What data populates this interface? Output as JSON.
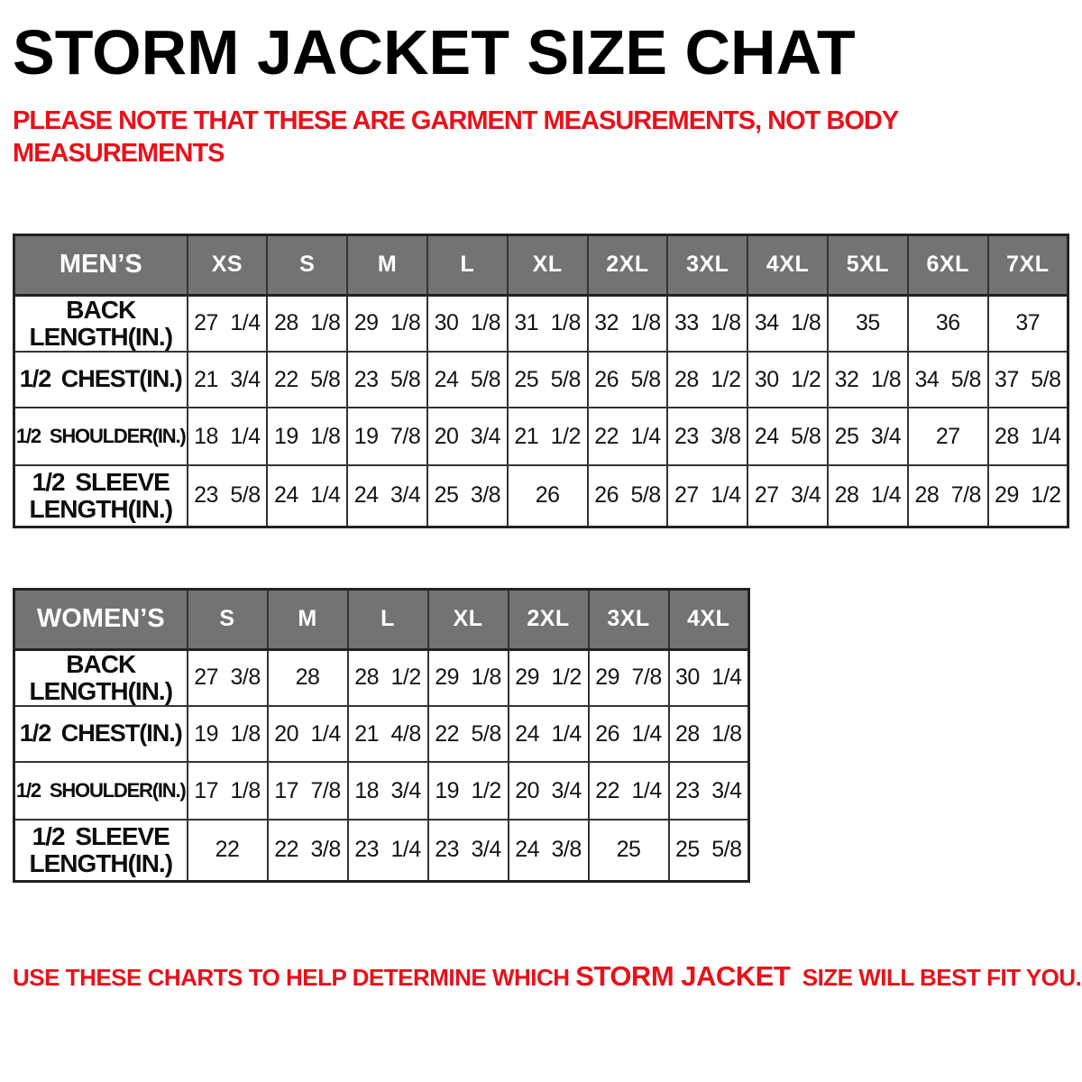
{
  "title": "STORM JACKET SIZE CHAT",
  "note": "PLEASE NOTE THAT THESE ARE GARMENT MEASUREMENTS, NOT BODY MEASUREMENTS",
  "tables": [
    {
      "name": "MEN’S",
      "sizes": [
        "XS",
        "S",
        "M",
        "L",
        "XL",
        "2XL",
        "3XL",
        "4XL",
        "5XL",
        "6XL",
        "7XL"
      ],
      "rows": [
        {
          "label": "BACK\nLENGTH(IN.)",
          "values": [
            "27 1/4",
            "28 1/8",
            "29 1/8",
            "30 1/8",
            "31 1/8",
            "32 1/8",
            "33 1/8",
            "34 1/8",
            "35",
            "36",
            "37"
          ]
        },
        {
          "label": "1/2 CHEST(IN.)",
          "values": [
            "21 3/4",
            "22 5/8",
            "23 5/8",
            "24 5/8",
            "25 5/8",
            "26 5/8",
            "28 1/2",
            "30 1/2",
            "32 1/8",
            "34 5/8",
            "37 5/8"
          ]
        },
        {
          "label": "1/2 SHOULDER(IN.)",
          "values": [
            "18 1/4",
            "19 1/8",
            "19 7/8",
            "20 3/4",
            "21 1/2",
            "22 1/4",
            "23 3/8",
            "24 5/8",
            "25 3/4",
            "27",
            "28 1/4"
          ]
        },
        {
          "label": "1/2 SLEEVE\nLENGTH(IN.)",
          "values": [
            "23 5/8",
            "24 1/4",
            "24 3/4",
            "25 3/8",
            "26",
            "26 5/8",
            "27 1/4",
            "27 3/4",
            "28 1/4",
            "28 7/8",
            "29 1/2"
          ]
        }
      ]
    },
    {
      "name": "WOMEN’S",
      "sizes": [
        "S",
        "M",
        "L",
        "XL",
        "2XL",
        "3XL",
        "4XL"
      ],
      "rows": [
        {
          "label": "BACK\nLENGTH(IN.)",
          "values": [
            "27 3/8",
            "28",
            "28 1/2",
            "29 1/8",
            "29 1/2",
            "29 7/8",
            "30 1/4"
          ]
        },
        {
          "label": "1/2 CHEST(IN.)",
          "values": [
            "19 1/8",
            "20 1/4",
            "21 4/8",
            "22 5/8",
            "24 1/4",
            "26 1/4",
            "28 1/8"
          ]
        },
        {
          "label": "1/2 SHOULDER(IN.)",
          "values": [
            "17 1/8",
            "17 7/8",
            "18 3/4",
            "19 1/2",
            "20 3/4",
            "22 1/4",
            "23 3/4"
          ]
        },
        {
          "label": "1/2 SLEEVE\nLENGTH(IN.)",
          "values": [
            "22",
            "22 3/8",
            "23 1/4",
            "23 3/4",
            "24 3/8",
            "25",
            "25 5/8"
          ]
        }
      ]
    }
  ],
  "footer": {
    "prefix": "USE THESE CHARTS TO HELP DETERMINE WHICH ",
    "highlight": "STORM JACKET",
    "suffix": "  SIZE WILL BEST FIT YOU."
  },
  "colors": {
    "accent_red": "#e8111a",
    "header_grey": "#737373",
    "border_dark": "#333333"
  }
}
